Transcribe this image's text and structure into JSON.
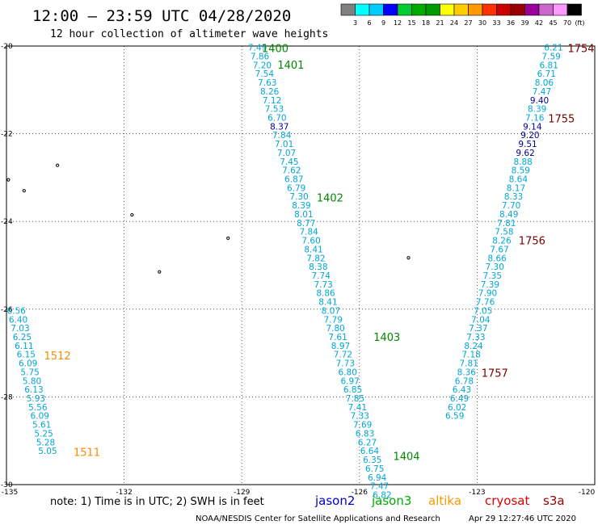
{
  "chart_data": {
    "type": "scatter",
    "title": "12:00 — 23:59 UTC 04/28/2020",
    "subtitle": "12 hour collection of altimeter wave heights",
    "xlim": [
      -135,
      -120
    ],
    "ylim": [
      -30,
      -20
    ],
    "x_ticks": [
      -135,
      -132,
      -129,
      -126,
      -123,
      -120
    ],
    "x_tick_labels": [
      "-135",
      "-132",
      "-129",
      "-126",
      "-123",
      "-120"
    ],
    "y_ticks": [
      -20,
      -22,
      -24,
      -26,
      -28,
      -30
    ],
    "y_tick_labels": [
      "-20",
      "-22",
      "-24",
      "-26",
      "-28",
      "-30"
    ],
    "grid": true,
    "colorbar": {
      "unit": "(ft)",
      "labels": [
        "3",
        "6",
        "9",
        "12",
        "15",
        "18",
        "21",
        "24",
        "27",
        "30",
        "33",
        "36",
        "39",
        "42",
        "45",
        "70"
      ],
      "colors": [
        "#808080",
        "#00ffff",
        "#00ccff",
        "#0000ff",
        "#00cc33",
        "#00aa00",
        "#009900",
        "#ffff00",
        "#ffcc00",
        "#ff9900",
        "#ff3300",
        "#cc0000",
        "#990000",
        "#990099",
        "#cc66cc",
        "#ff99ff",
        "#000000"
      ]
    },
    "series": [
      {
        "name": "jason3",
        "color": "#00a6d6",
        "points": [
          {
            "x": -128.6,
            "y": -20.03,
            "v": "7.49"
          },
          {
            "x": -128.54,
            "y": -20.23,
            "v": "7.86"
          },
          {
            "x": -128.48,
            "y": -20.43,
            "v": "7.20"
          },
          {
            "x": -128.42,
            "y": -20.63,
            "v": "7.54"
          },
          {
            "x": -128.35,
            "y": -20.83,
            "v": "7.63"
          },
          {
            "x": -128.29,
            "y": -21.03,
            "v": "8.26"
          },
          {
            "x": -128.23,
            "y": -21.23,
            "v": "7.12"
          },
          {
            "x": -128.17,
            "y": -21.43,
            "v": "7.53"
          },
          {
            "x": -128.1,
            "y": -21.63,
            "v": "6.70"
          },
          {
            "x": -128.04,
            "y": -21.83,
            "v": "8.37",
            "color": "#000099"
          },
          {
            "x": -127.98,
            "y": -22.03,
            "v": "7.84"
          },
          {
            "x": -127.92,
            "y": -22.23,
            "v": "7.01"
          },
          {
            "x": -127.86,
            "y": -22.43,
            "v": "7.07"
          },
          {
            "x": -127.79,
            "y": -22.63,
            "v": "7.45"
          },
          {
            "x": -127.73,
            "y": -22.83,
            "v": "7.62"
          },
          {
            "x": -127.67,
            "y": -23.03,
            "v": "6.87"
          },
          {
            "x": -127.61,
            "y": -23.23,
            "v": "6.79"
          },
          {
            "x": -127.54,
            "y": -23.43,
            "v": "7.30"
          },
          {
            "x": -127.48,
            "y": -23.63,
            "v": "8.39"
          },
          {
            "x": -127.42,
            "y": -23.83,
            "v": "8.01"
          },
          {
            "x": -127.36,
            "y": -24.03,
            "v": "8.77"
          },
          {
            "x": -127.29,
            "y": -24.23,
            "v": "7.84"
          },
          {
            "x": -127.23,
            "y": -24.43,
            "v": "7.60"
          },
          {
            "x": -127.17,
            "y": -24.63,
            "v": "8.41"
          },
          {
            "x": -127.11,
            "y": -24.83,
            "v": "7.82"
          },
          {
            "x": -127.05,
            "y": -25.03,
            "v": "8.38"
          },
          {
            "x": -126.98,
            "y": -25.23,
            "v": "7.74"
          },
          {
            "x": -126.92,
            "y": -25.43,
            "v": "7.73"
          },
          {
            "x": -126.86,
            "y": -25.63,
            "v": "8.86"
          },
          {
            "x": -126.8,
            "y": -25.83,
            "v": "8.41"
          },
          {
            "x": -126.73,
            "y": -26.03,
            "v": "8.07"
          },
          {
            "x": -126.67,
            "y": -26.23,
            "v": "7.79"
          },
          {
            "x": -126.61,
            "y": -26.43,
            "v": "7.80"
          },
          {
            "x": -126.55,
            "y": -26.63,
            "v": "7.61"
          },
          {
            "x": -126.48,
            "y": -26.83,
            "v": "8.97"
          },
          {
            "x": -126.42,
            "y": -27.03,
            "v": "7.72"
          },
          {
            "x": -126.36,
            "y": -27.23,
            "v": "7.73"
          },
          {
            "x": -126.3,
            "y": -27.43,
            "v": "6.80"
          },
          {
            "x": -126.24,
            "y": -27.63,
            "v": "6.97"
          },
          {
            "x": -126.17,
            "y": -27.83,
            "v": "6.85"
          },
          {
            "x": -126.11,
            "y": -28.03,
            "v": "7.85"
          },
          {
            "x": -126.05,
            "y": -28.23,
            "v": "7.41"
          },
          {
            "x": -125.99,
            "y": -28.43,
            "v": "7.33"
          },
          {
            "x": -125.92,
            "y": -28.63,
            "v": "7.69"
          },
          {
            "x": -125.86,
            "y": -28.83,
            "v": "6.83"
          },
          {
            "x": -125.8,
            "y": -29.03,
            "v": "6.27"
          },
          {
            "x": -125.74,
            "y": -29.23,
            "v": "6.64"
          },
          {
            "x": -125.67,
            "y": -29.43,
            "v": "6.35"
          },
          {
            "x": -125.61,
            "y": -29.63,
            "v": "6.75"
          },
          {
            "x": -125.55,
            "y": -29.83,
            "v": "6.94"
          },
          {
            "x": -125.49,
            "y": -30.03,
            "v": "7.47"
          },
          {
            "x": -125.42,
            "y": -30.23,
            "v": "6.82"
          }
        ],
        "pass_labels": [
          {
            "x": -128.15,
            "y": -20.05,
            "text": "1400",
            "color": "#008800"
          },
          {
            "x": -127.75,
            "y": -20.42,
            "text": "1401",
            "color": "#008800"
          },
          {
            "x": -126.75,
            "y": -23.45,
            "text": "1402",
            "color": "#008800"
          },
          {
            "x": -125.3,
            "y": -26.63,
            "text": "1403",
            "color": "#008800"
          },
          {
            "x": -124.8,
            "y": -29.35,
            "text": "1404",
            "color": "#008800"
          }
        ]
      },
      {
        "name": "cryosat",
        "color": "#00a6d6",
        "points": [
          {
            "x": -121.05,
            "y": -20.03,
            "v": "6.21"
          },
          {
            "x": -121.11,
            "y": -20.23,
            "v": "7.59"
          },
          {
            "x": -121.17,
            "y": -20.43,
            "v": "6.81"
          },
          {
            "x": -121.23,
            "y": -20.63,
            "v": "6.71"
          },
          {
            "x": -121.29,
            "y": -20.83,
            "v": "8.06"
          },
          {
            "x": -121.35,
            "y": -21.03,
            "v": "7.47"
          },
          {
            "x": -121.41,
            "y": -21.23,
            "v": "9.40",
            "color": "#000099"
          },
          {
            "x": -121.47,
            "y": -21.43,
            "v": "8.39"
          },
          {
            "x": -121.53,
            "y": -21.63,
            "v": "7.16"
          },
          {
            "x": -121.59,
            "y": -21.83,
            "v": "9.14",
            "color": "#000099"
          },
          {
            "x": -121.65,
            "y": -22.03,
            "v": "9.20",
            "color": "#000099"
          },
          {
            "x": -121.71,
            "y": -22.23,
            "v": "9.51",
            "color": "#000099"
          },
          {
            "x": -121.77,
            "y": -22.43,
            "v": "9.62",
            "color": "#000099"
          },
          {
            "x": -121.83,
            "y": -22.63,
            "v": "8.88"
          },
          {
            "x": -121.89,
            "y": -22.83,
            "v": "8.59"
          },
          {
            "x": -121.95,
            "y": -23.03,
            "v": "8.64"
          },
          {
            "x": -122.01,
            "y": -23.23,
            "v": "8.17"
          },
          {
            "x": -122.07,
            "y": -23.43,
            "v": "8.33"
          },
          {
            "x": -122.13,
            "y": -23.63,
            "v": "7.70"
          },
          {
            "x": -122.19,
            "y": -23.83,
            "v": "8.49"
          },
          {
            "x": -122.25,
            "y": -24.03,
            "v": "7.81"
          },
          {
            "x": -122.31,
            "y": -24.23,
            "v": "7.58"
          },
          {
            "x": -122.37,
            "y": -24.43,
            "v": "8.26"
          },
          {
            "x": -122.43,
            "y": -24.63,
            "v": "7.67"
          },
          {
            "x": -122.49,
            "y": -24.83,
            "v": "8.66"
          },
          {
            "x": -122.55,
            "y": -25.03,
            "v": "7.30"
          },
          {
            "x": -122.61,
            "y": -25.23,
            "v": "7.35"
          },
          {
            "x": -122.67,
            "y": -25.43,
            "v": "7.39"
          },
          {
            "x": -122.73,
            "y": -25.63,
            "v": "7.90"
          },
          {
            "x": -122.79,
            "y": -25.83,
            "v": "7.76"
          },
          {
            "x": -122.85,
            "y": -26.03,
            "v": "7.05"
          },
          {
            "x": -122.91,
            "y": -26.23,
            "v": "7.04"
          },
          {
            "x": -122.97,
            "y": -26.43,
            "v": "7.37"
          },
          {
            "x": -123.03,
            "y": -26.63,
            "v": "7.33"
          },
          {
            "x": -123.09,
            "y": -26.83,
            "v": "8.24"
          },
          {
            "x": -123.15,
            "y": -27.03,
            "v": "7.18"
          },
          {
            "x": -123.21,
            "y": -27.23,
            "v": "7.81"
          },
          {
            "x": -123.27,
            "y": -27.43,
            "v": "8.36"
          },
          {
            "x": -123.33,
            "y": -27.63,
            "v": "6.78"
          },
          {
            "x": -123.39,
            "y": -27.83,
            "v": "6.43"
          },
          {
            "x": -123.45,
            "y": -28.03,
            "v": "6.49"
          },
          {
            "x": -123.51,
            "y": -28.23,
            "v": "6.02"
          },
          {
            "x": -123.57,
            "y": -28.43,
            "v": "6.59"
          }
        ],
        "pass_labels": [
          {
            "x": -120.35,
            "y": -20.05,
            "text": "1754",
            "color": "#770000"
          },
          {
            "x": -120.85,
            "y": -21.65,
            "text": "1755",
            "color": "#770000"
          },
          {
            "x": -121.6,
            "y": -24.43,
            "text": "1756",
            "color": "#770000"
          },
          {
            "x": -122.55,
            "y": -27.45,
            "text": "1757",
            "color": "#770000"
          }
        ]
      },
      {
        "name": "altika",
        "color": "#00a6d6",
        "points": [
          {
            "x": -134.75,
            "y": -26.03,
            "v": "6.56"
          },
          {
            "x": -134.7,
            "y": -26.23,
            "v": "6.40"
          },
          {
            "x": -134.65,
            "y": -26.43,
            "v": "7.03"
          },
          {
            "x": -134.6,
            "y": -26.63,
            "v": "6.25"
          },
          {
            "x": -134.55,
            "y": -26.83,
            "v": "6.11"
          },
          {
            "x": -134.5,
            "y": -27.03,
            "v": "6.15"
          },
          {
            "x": -134.45,
            "y": -27.23,
            "v": "6.09"
          },
          {
            "x": -134.4,
            "y": -27.43,
            "v": "5.75"
          },
          {
            "x": -134.35,
            "y": -27.63,
            "v": "5.80"
          },
          {
            "x": -134.3,
            "y": -27.83,
            "v": "6.13"
          },
          {
            "x": -134.25,
            "y": -28.03,
            "v": "5.93"
          },
          {
            "x": -134.2,
            "y": -28.23,
            "v": "5.56"
          },
          {
            "x": -134.15,
            "y": -28.43,
            "v": "6.09"
          },
          {
            "x": -134.1,
            "y": -28.63,
            "v": "5.61"
          },
          {
            "x": -134.05,
            "y": -28.83,
            "v": "5.25"
          },
          {
            "x": -134.0,
            "y": -29.03,
            "v": "5.28"
          },
          {
            "x": -133.95,
            "y": -29.23,
            "v": "5.05"
          }
        ],
        "pass_labels": [
          {
            "x": -133.7,
            "y": -27.05,
            "text": "1512",
            "color": "#ff8800"
          },
          {
            "x": -132.95,
            "y": -29.25,
            "text": "1511",
            "color": "#ff8800"
          }
        ]
      }
    ],
    "land": [
      {
        "x": -133.7,
        "y": -22.72
      },
      {
        "x": -134.95,
        "y": -23.05
      },
      {
        "x": -134.55,
        "y": -23.3
      },
      {
        "x": -131.8,
        "y": -23.85
      },
      {
        "x": -129.35,
        "y": -24.38
      },
      {
        "x": -131.1,
        "y": -25.15
      },
      {
        "x": -124.75,
        "y": -24.83
      }
    ]
  },
  "footer": {
    "note": "note:  1) Time is in UTC;  2) SWH is in feet",
    "satellites": [
      {
        "name": "jason2",
        "color": "#0000cc"
      },
      {
        "name": "jason3",
        "color": "#00aa00"
      },
      {
        "name": "altika",
        "color": "#ff9900"
      },
      {
        "name": "cryosat",
        "color": "#dd0000"
      },
      {
        "name": "s3a",
        "color": "#990000"
      }
    ],
    "credit": "NOAA/NESDIS Center for Satellite Applications and Research",
    "timestamp": "Apr 29 12:27:46 UTC 2020"
  }
}
